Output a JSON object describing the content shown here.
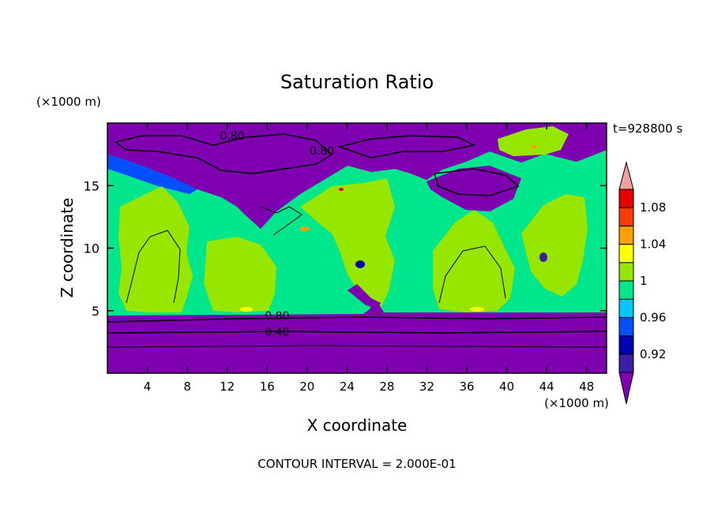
{
  "chart_data": {
    "type": "heatmap",
    "title": "Saturation Ratio",
    "xlabel": "X coordinate",
    "ylabel": "Z coordinate",
    "x_unit": "(×1000 m)",
    "y_unit": "(×1000 m)",
    "time_label": "t=928800 s",
    "footer": "CONTOUR INTERVAL = 2.000E-01",
    "xlim": [
      0,
      50
    ],
    "ylim": [
      0,
      20
    ],
    "x_ticks": [
      4,
      8,
      12,
      16,
      20,
      24,
      28,
      32,
      36,
      40,
      44,
      48
    ],
    "y_ticks": [
      5,
      10,
      15
    ],
    "contour_labels": [
      {
        "text": "0.80",
        "x": 12.5,
        "y": 19.0
      },
      {
        "text": "0.80",
        "x": 21.5,
        "y": 17.8
      },
      {
        "text": "0.80",
        "x": 17.0,
        "y": 4.6
      },
      {
        "text": "0.40",
        "x": 17.0,
        "y": 3.3
      }
    ],
    "colorbar": {
      "boundaries": [
        0.9,
        0.92,
        0.94,
        0.96,
        0.98,
        1.0,
        1.02,
        1.04,
        1.06,
        1.08,
        1.1
      ],
      "labels": [
        "0.92",
        "0.96",
        "1",
        "1.04",
        "1.08"
      ],
      "colors": [
        "#7f00b0",
        "#3c1ea6",
        "#0000b4",
        "#0050ff",
        "#00c8ff",
        "#00e68c",
        "#96e600",
        "#ffff00",
        "#ffa000",
        "#ff3c00",
        "#e60000",
        "#f0a0a0"
      ],
      "extend": "both"
    }
  }
}
